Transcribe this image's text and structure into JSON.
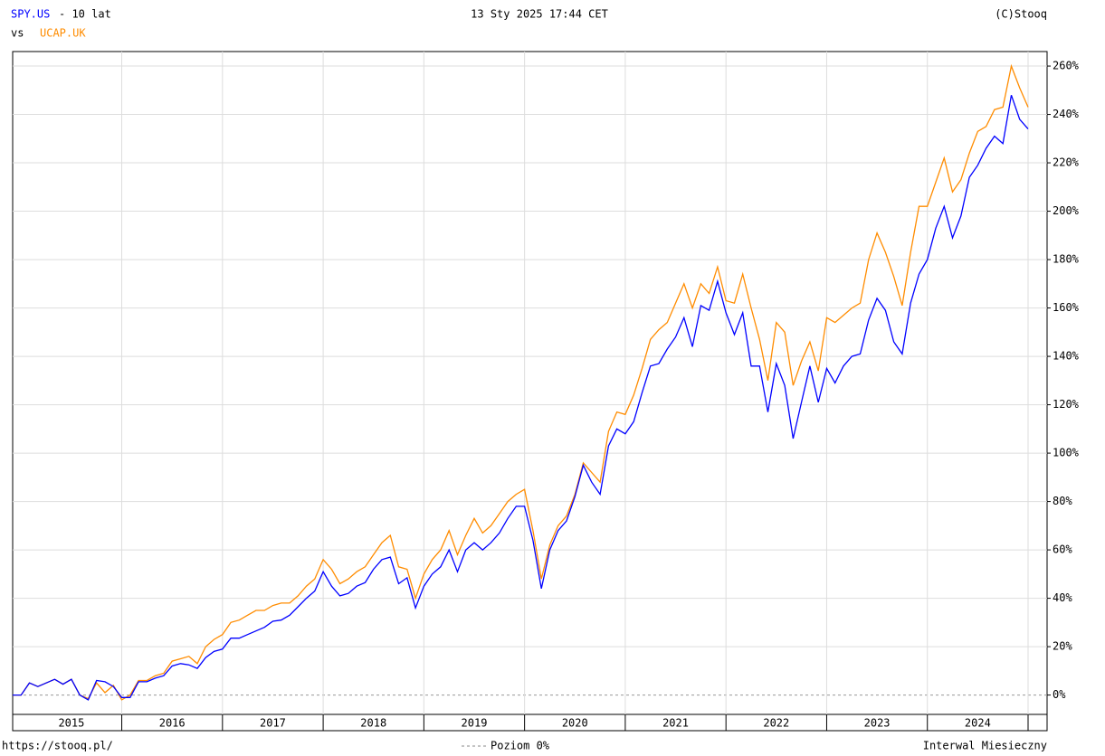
{
  "chart_data": {
    "type": "line",
    "title": "- 10 lat",
    "vs": "vs",
    "date": "13 Sty 2025 17:44 CET",
    "copyright": "(C)Stooq",
    "url": "https://stooq.pl/",
    "zero_label": "Poziom 0%",
    "interval": "Interwal Miesieczny",
    "x_labels": [
      "2015",
      "2016",
      "2017",
      "2018",
      "2019",
      "2020",
      "2021",
      "2022",
      "2023",
      "2024"
    ],
    "ylim": [
      -8,
      266
    ],
    "yticks": [
      {
        "value": 0,
        "label": "0%"
      },
      {
        "value": 20,
        "label": "20%"
      },
      {
        "value": 40,
        "label": "40%"
      },
      {
        "value": 60,
        "label": "60%"
      },
      {
        "value": 80,
        "label": "80%"
      },
      {
        "value": 100,
        "label": "100%"
      },
      {
        "value": 120,
        "label": "120%"
      },
      {
        "value": 140,
        "label": "140%"
      },
      {
        "value": 160,
        "label": "160%"
      },
      {
        "value": 180,
        "label": "180%"
      },
      {
        "value": 200,
        "label": "200%"
      },
      {
        "value": 220,
        "label": "220%"
      },
      {
        "value": 240,
        "label": "240%"
      },
      {
        "value": 260,
        "label": "260%"
      }
    ],
    "grid": true,
    "series": [
      {
        "name": "SPY.US",
        "color": "#0000ff",
        "values": [
          0,
          0,
          5,
          3.5,
          5,
          6.5,
          4.5,
          6.5,
          0,
          -2,
          6,
          5.5,
          3.5,
          -1,
          -1,
          5.5,
          5.5,
          7,
          8,
          12,
          13,
          12.5,
          11,
          15.5,
          18,
          19,
          23.5,
          23.5,
          25,
          26.5,
          28,
          30.5,
          31,
          33,
          36.5,
          40,
          43,
          51,
          45,
          41,
          42,
          45,
          46.5,
          52,
          56,
          57,
          46,
          48.5,
          36,
          45,
          50,
          53,
          60,
          51,
          60,
          63,
          60,
          63,
          67,
          73,
          78,
          78,
          64,
          44,
          60,
          68,
          72,
          82,
          95,
          88,
          83,
          103,
          110,
          108,
          113,
          125,
          136,
          137,
          143,
          148,
          156,
          144,
          161,
          159,
          171,
          158,
          149,
          158,
          136,
          136,
          117,
          137,
          128,
          106,
          121,
          136,
          121,
          135,
          129,
          136,
          140,
          141,
          155,
          164,
          159,
          146,
          141,
          162,
          174,
          180,
          193,
          202,
          189,
          198,
          214,
          219,
          226,
          231,
          228,
          248,
          238,
          234
        ]
      },
      {
        "name": "UCAP.UK",
        "color": "#ff8c00",
        "values": [
          0,
          0,
          5,
          3.5,
          5,
          6.5,
          4.5,
          6.5,
          0,
          -1.5,
          5,
          1,
          4,
          -2,
          0,
          6,
          6,
          8,
          9,
          14,
          15,
          16,
          13,
          20,
          23,
          25,
          30,
          31,
          33,
          35,
          35,
          37,
          38,
          38,
          41,
          45,
          48,
          56,
          52,
          46,
          48,
          51,
          53,
          58,
          63,
          66,
          53,
          52,
          40,
          50,
          56,
          60,
          68,
          58,
          66,
          73,
          67,
          70,
          75,
          80,
          83,
          85,
          68,
          48,
          62,
          70,
          74,
          83,
          96,
          92,
          88,
          109,
          117,
          116,
          124,
          135,
          147,
          151,
          154,
          162,
          170,
          160,
          170,
          166,
          177,
          163,
          162,
          174,
          160,
          147,
          130,
          154,
          150,
          128,
          138,
          146,
          134,
          156,
          154,
          157,
          160,
          162,
          180,
          191,
          183,
          173,
          161,
          183,
          202,
          202,
          212,
          222,
          208,
          213,
          224,
          233,
          235,
          242,
          243,
          260,
          251,
          243
        ]
      }
    ]
  }
}
